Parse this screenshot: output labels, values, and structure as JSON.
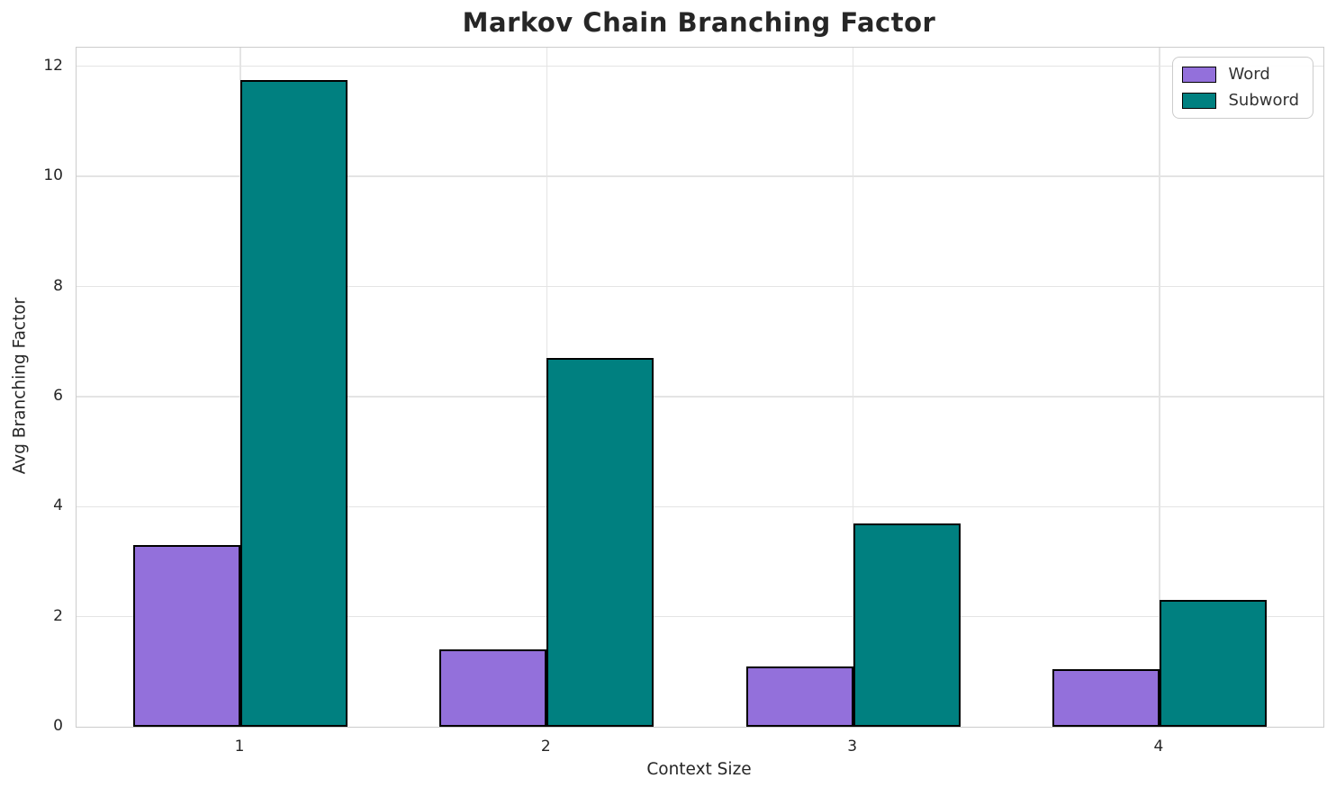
{
  "title": "Markov Chain Branching Factor",
  "axes": {
    "xlabel": "Context Size",
    "ylabel": "Avg Branching Factor"
  },
  "chart_data": {
    "type": "bar",
    "title": "Markov Chain Branching Factor",
    "xlabel": "Context Size",
    "ylabel": "Avg Branching Factor",
    "categories": [
      "1",
      "2",
      "3",
      "4"
    ],
    "series": [
      {
        "name": "Word",
        "color": "#9370DB",
        "values": [
          3.3,
          1.4,
          1.1,
          1.05
        ]
      },
      {
        "name": "Subword",
        "color": "#008080",
        "values": [
          11.75,
          6.7,
          3.7,
          2.3
        ]
      }
    ],
    "yticks": [
      0,
      2,
      4,
      6,
      8,
      10,
      12
    ],
    "ylim": [
      0,
      12.34
    ],
    "bar_edge_color": "#000000",
    "grid": true,
    "grid_color": "#e4e4e4",
    "legend_position": "upper right",
    "legend_labels": [
      "Word",
      "Subword"
    ]
  }
}
